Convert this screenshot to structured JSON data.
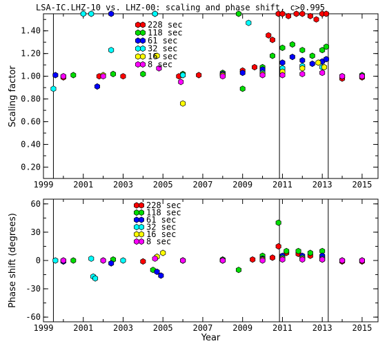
{
  "chart_data": [
    {
      "type": "scatter",
      "title": "LSA-IC.LHZ-10 vs. LHZ-00: scaling and phase shift, c>0.995",
      "xlabel": "",
      "ylabel": "Scaling factor",
      "xlim": [
        1999,
        2015.8
      ],
      "ylim": [
        0.1,
        1.55
      ],
      "xticks": [
        "1999",
        "2001",
        "2003",
        "2005",
        "2007",
        "2009",
        "2011",
        "2013",
        "2015"
      ],
      "yticks": [
        "0.20",
        "0.40",
        "0.60",
        "0.80",
        "1.00",
        "1.20",
        "1.40"
      ],
      "grid": false,
      "vertical_markers": [
        1999.5,
        2010.85,
        2013.3
      ],
      "legend_placement": "top-center",
      "series": [
        {
          "name": "228 sec",
          "color": "#ff0000",
          "x": [
            2000.0,
            2001.8,
            2003.0,
            2005.8,
            2006.8,
            2008.0,
            2009.0,
            2009.6,
            2010.3,
            2010.5,
            2010.8,
            2011.0,
            2011.3,
            2011.7,
            2012.0,
            2012.4,
            2012.7,
            2013.0,
            2013.2,
            2014.0,
            2015.0
          ],
          "y": [
            0.99,
            1.0,
            1.0,
            1.0,
            1.01,
            1.02,
            1.05,
            1.08,
            1.36,
            1.32,
            1.55,
            1.55,
            1.53,
            1.55,
            1.55,
            1.53,
            1.5,
            1.55,
            1.55,
            0.98,
            0.99
          ]
        },
        {
          "name": "118 sec",
          "color": "#00dd00",
          "x": [
            2000.5,
            2002.5,
            2004.0,
            2006.0,
            2008.0,
            2008.8,
            2009.0,
            2010.0,
            2010.5,
            2011.0,
            2011.5,
            2012.0,
            2012.5,
            2013.0,
            2013.2,
            2014.0,
            2015.0
          ],
          "y": [
            1.01,
            1.02,
            1.02,
            1.02,
            1.03,
            1.55,
            0.89,
            1.08,
            1.18,
            1.25,
            1.28,
            1.23,
            1.18,
            1.23,
            1.26,
            1.0,
            1.01
          ]
        },
        {
          "name": "61 sec",
          "color": "#0000ff",
          "x": [
            1999.6,
            2001.7,
            2002.4,
            2004.6,
            2006.0,
            2008.0,
            2009.0,
            2010.0,
            2011.0,
            2011.5,
            2012.0,
            2012.5,
            2013.0,
            2013.2,
            2014.0,
            2015.0
          ],
          "y": [
            1.01,
            0.91,
            1.55,
            1.55,
            1.01,
            1.02,
            1.03,
            1.06,
            1.12,
            1.17,
            1.14,
            1.11,
            1.13,
            1.15,
            1.0,
            1.0
          ]
        },
        {
          "name": "32 sec",
          "color": "#00ffff",
          "x": [
            1999.5,
            2001.0,
            2001.4,
            2002.4,
            2004.6,
            2006.0,
            2008.0,
            2009.3,
            2010.0,
            2011.0,
            2012.0,
            2013.0,
            2014.0,
            2015.0
          ],
          "y": [
            0.89,
            1.55,
            1.55,
            1.23,
            1.55,
            1.01,
            1.01,
            1.47,
            1.03,
            1.07,
            1.09,
            1.08,
            1.0,
            1.0
          ]
        },
        {
          "name": "16 sec",
          "color": "#ffff00",
          "x": [
            2000.0,
            2002.0,
            2004.7,
            2006.0,
            2008.0,
            2010.0,
            2011.0,
            2012.0,
            2012.8,
            2013.1,
            2014.0,
            2015.0
          ],
          "y": [
            1.0,
            1.01,
            1.18,
            0.76,
            1.01,
            1.02,
            1.04,
            1.07,
            1.12,
            1.08,
            1.0,
            1.0
          ]
        },
        {
          "name": "8 sec",
          "color": "#ff00ff",
          "x": [
            2000.0,
            2002.0,
            2004.8,
            2005.9,
            2008.0,
            2010.0,
            2011.0,
            2012.0,
            2013.0,
            2014.0,
            2015.0
          ],
          "y": [
            1.0,
            1.0,
            1.07,
            0.95,
            1.0,
            1.01,
            1.01,
            1.02,
            1.03,
            1.0,
            1.0
          ]
        }
      ]
    },
    {
      "type": "scatter",
      "title": "",
      "xlabel": "Year",
      "ylabel": "Phase shift (degrees)",
      "xlim": [
        1999,
        2015.8
      ],
      "ylim": [
        -65,
        65
      ],
      "xticks": [
        "1999",
        "2001",
        "2003",
        "2005",
        "2007",
        "2009",
        "2011",
        "2013",
        "2015"
      ],
      "yticks": [
        "-60",
        "-30",
        "0",
        "30",
        "60"
      ],
      "grid": false,
      "vertical_markers": [
        1999.5,
        2010.85,
        2013.3
      ],
      "legend_placement": "top-center",
      "series": [
        {
          "name": "228 sec",
          "color": "#ff0000",
          "x": [
            2000.0,
            2002.0,
            2004.0,
            2006.0,
            2008.0,
            2009.5,
            2010.5,
            2010.8,
            2011.2,
            2011.8,
            2012.4,
            2013.0,
            2014.0,
            2015.0
          ],
          "y": [
            -1,
            0,
            -1,
            0,
            0,
            1,
            3,
            15,
            8,
            7,
            5,
            4,
            -1,
            -1
          ]
        },
        {
          "name": "118 sec",
          "color": "#00dd00",
          "x": [
            2000.5,
            2002.5,
            2004.5,
            2006.0,
            2008.0,
            2008.8,
            2010.0,
            2010.8,
            2011.2,
            2011.8,
            2012.4,
            2013.0,
            2014.0,
            2015.0
          ],
          "y": [
            0,
            1,
            -10,
            0,
            1,
            -10,
            5,
            40,
            10,
            10,
            8,
            10,
            0,
            0
          ]
        },
        {
          "name": "61 sec",
          "color": "#0000ff",
          "x": [
            2000.0,
            2002.4,
            2004.7,
            2004.9,
            2006.0,
            2008.0,
            2010.0,
            2011.0,
            2012.0,
            2013.0,
            2014.0,
            2015.0
          ],
          "y": [
            -1,
            -3,
            -12,
            -16,
            0,
            0,
            2,
            5,
            5,
            5,
            0,
            0
          ]
        },
        {
          "name": "32 sec",
          "color": "#00ffff",
          "x": [
            1999.6,
            2001.4,
            2001.5,
            2001.6,
            2003.0,
            2006.0,
            2008.0,
            2010.0,
            2011.0,
            2012.0,
            2013.0,
            2014.0,
            2015.0
          ],
          "y": [
            0,
            2,
            -17,
            -19,
            0,
            0,
            0,
            1,
            3,
            3,
            2,
            0,
            0
          ]
        },
        {
          "name": "16 sec",
          "color": "#ffff00",
          "x": [
            2000.0,
            2002.0,
            2004.7,
            2005.0,
            2006.0,
            2008.0,
            2010.0,
            2011.0,
            2012.0,
            2013.0,
            2014.0,
            2015.0
          ],
          "y": [
            0,
            0,
            4,
            8,
            0,
            0,
            1,
            2,
            2,
            1,
            0,
            0
          ]
        },
        {
          "name": "8 sec",
          "color": "#ff00ff",
          "x": [
            2000.0,
            2002.0,
            2004.6,
            2006.0,
            2008.0,
            2010.0,
            2011.0,
            2012.0,
            2013.0,
            2014.0,
            2015.0
          ],
          "y": [
            0,
            0,
            2,
            0,
            0,
            0,
            1,
            1,
            1,
            0,
            0
          ]
        }
      ]
    }
  ]
}
